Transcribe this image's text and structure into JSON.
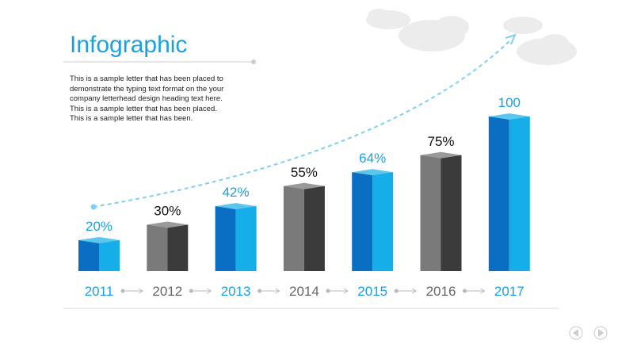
{
  "chart_data": {
    "type": "bar3d",
    "title": "Infographic",
    "body": "This is a sample letter that has been placed to demonstrate the typing text format on the your company letterhead design heading text here. This is a sample letter that has been placed. This is a sample letter that has been.",
    "categories": [
      "2011",
      "2012",
      "2013",
      "2014",
      "2015",
      "2016",
      "2017"
    ],
    "values": [
      20,
      30,
      42,
      55,
      64,
      75,
      100
    ],
    "value_labels": [
      "20%",
      "30%",
      "42%",
      "55%",
      "64%",
      "75%",
      "100"
    ],
    "colors": [
      "#1ba1e2",
      "#5a5a5a",
      "#1ba1e2",
      "#5a5a5a",
      "#1ba1e2",
      "#5a5a5a",
      "#1ba1e2"
    ],
    "label_colors": [
      "#1ba1e2",
      "#111111",
      "#1ba1e2",
      "#111111",
      "#1ba1e2",
      "#111111",
      "#1ba1e2"
    ],
    "category_colors": [
      "#1ba1e2",
      "#666666",
      "#1ba1e2",
      "#666666",
      "#1ba1e2",
      "#666666",
      "#1ba1e2"
    ]
  }
}
